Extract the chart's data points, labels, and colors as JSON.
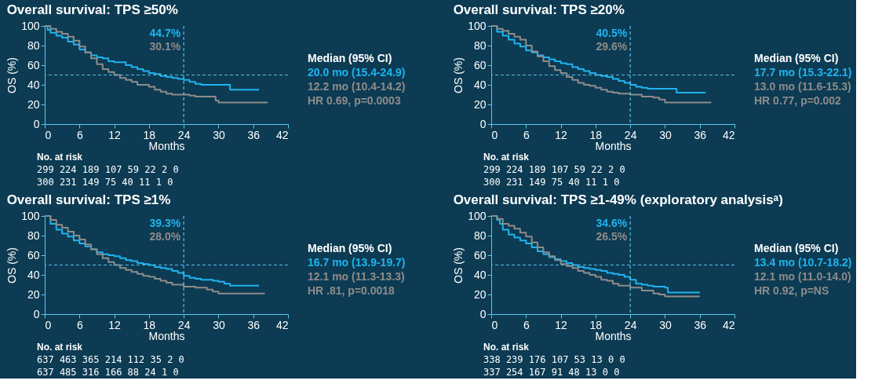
{
  "chart_data": [
    {
      "type": "step",
      "title": "Overall survival: TPS ≥50%",
      "xlabel": "Months",
      "ylabel": "OS (%)",
      "xlim": [
        0,
        42
      ],
      "xticks": [
        0,
        6,
        12,
        18,
        24,
        30,
        36,
        42
      ],
      "ylim": [
        0,
        100
      ],
      "yticks": [
        0,
        20,
        40,
        60,
        80,
        100
      ],
      "grid": false,
      "series": [
        {
          "color": "#1fb4ef",
          "x": [
            0,
            0.5,
            1,
            2,
            3,
            4,
            5,
            6,
            7,
            8,
            9,
            10,
            11,
            12,
            13,
            14,
            15,
            16,
            17,
            18,
            19,
            20,
            21,
            22,
            23,
            24,
            25,
            26,
            27,
            30,
            32,
            37
          ],
          "values": [
            100,
            96,
            93,
            90,
            88,
            84,
            81,
            76,
            73,
            70,
            68,
            67,
            64,
            63,
            63,
            60,
            58,
            56,
            54,
            52,
            51,
            49,
            48,
            47,
            46,
            45,
            43,
            41,
            40,
            40,
            35,
            35
          ]
        },
        {
          "color": "#8e8c8a",
          "x": [
            0,
            1,
            2,
            3,
            4,
            5,
            6,
            7,
            8,
            9,
            10,
            11,
            12,
            13,
            14,
            15,
            16,
            18,
            19,
            20,
            21,
            22,
            24,
            25,
            26,
            29.5,
            30,
            38.5
          ],
          "values": [
            100,
            97,
            94,
            92,
            89,
            85,
            79,
            73,
            67,
            61,
            56,
            53,
            50,
            47,
            45,
            43,
            40,
            38,
            35,
            33,
            31,
            30,
            30,
            29,
            28,
            24,
            22,
            22
          ]
        }
      ],
      "ref_lines": [
        {
          "axis": "y",
          "value": 50,
          "color": "#5bbfe6",
          "line_style": "dashed"
        },
        {
          "axis": "x",
          "value": 24,
          "color": "#5bbfe6",
          "line_style": "dashed"
        }
      ],
      "annotations": [
        "44.7%",
        "30.1%",
        "Median (95% CI)",
        "20.0 mo (15.4-24.9)",
        "12.2 mo (10.4-14.2)",
        "HR 0.69, p=0.0003",
        "No. at risk",
        "299   224   189   107    59    22    2    0",
        "300   231   149    75    40    11    1    0"
      ]
    },
    {
      "type": "step",
      "title": "Overall survival: TPS ≥20%",
      "xlabel": "Months",
      "ylabel": "OS (%)",
      "xlim": [
        0,
        42
      ],
      "xticks": [
        0,
        6,
        12,
        18,
        24,
        30,
        36,
        42
      ],
      "ylim": [
        0,
        100
      ],
      "yticks": [
        0,
        20,
        40,
        60,
        80,
        100
      ],
      "grid": false,
      "series": [
        {
          "color": "#1fb4ef",
          "x": [
            0,
            1,
            2,
            3,
            4,
            5,
            6,
            7,
            8,
            9,
            10,
            11,
            12,
            13,
            14,
            15,
            16,
            17,
            18,
            19,
            20,
            21,
            22,
            23,
            24,
            25,
            26,
            27,
            31.5,
            32,
            37
          ],
          "values": [
            100,
            94,
            90,
            86,
            82,
            79,
            75,
            73,
            70,
            68,
            66,
            64,
            62,
            61,
            58,
            56,
            54,
            52,
            50,
            49,
            48,
            46,
            44,
            42,
            40,
            38,
            37,
            36,
            36,
            32,
            32
          ]
        },
        {
          "color": "#8e8c8a",
          "x": [
            0,
            1,
            2,
            3,
            4,
            5,
            6,
            7,
            8,
            9,
            10,
            11,
            12,
            13,
            14,
            15,
            16,
            17,
            18,
            19,
            20,
            21,
            22,
            24,
            26,
            28,
            29,
            30,
            38
          ],
          "values": [
            100,
            97,
            95,
            92,
            89,
            86,
            80,
            74,
            69,
            64,
            59,
            55,
            52,
            48,
            45,
            42,
            40,
            39,
            37,
            35,
            33,
            32,
            31,
            30,
            28,
            27,
            25,
            22,
            22
          ]
        }
      ],
      "ref_lines": [
        {
          "axis": "y",
          "value": 50,
          "color": "#5bbfe6",
          "line_style": "dashed"
        },
        {
          "axis": "x",
          "value": 24,
          "color": "#5bbfe6",
          "line_style": "dashed"
        }
      ],
      "annotations": [
        "40.5%",
        "29.6%",
        "Median (95% CI)",
        "17.7 mo (15.3-22.1)",
        "13.0 mo (11.6-15.3)",
        "HR 0.77, p=0.002",
        "No. at risk",
        "299   224   189   107    59    22    2    0",
        "300   231   149    75    40    11    1    0"
      ]
    },
    {
      "type": "step",
      "title": "Overall survival: TPS ≥1%",
      "xlabel": "Months",
      "ylabel": "OS (%)",
      "xlim": [
        0,
        42
      ],
      "xticks": [
        0,
        6,
        12,
        18,
        24,
        30,
        36,
        42
      ],
      "ylim": [
        0,
        100
      ],
      "yticks": [
        0,
        20,
        40,
        60,
        80,
        100
      ],
      "grid": false,
      "series": [
        {
          "color": "#1fb4ef",
          "x": [
            0,
            1,
            2,
            3,
            4,
            5,
            6,
            7,
            8,
            9,
            10,
            11,
            12,
            13,
            14,
            15,
            16,
            17,
            18,
            19,
            20,
            21,
            22,
            23,
            24,
            25,
            26,
            27,
            29,
            30,
            31,
            32,
            37
          ],
          "values": [
            100,
            92,
            86,
            82,
            79,
            75,
            72,
            69,
            66,
            63,
            61,
            60,
            59,
            57,
            55,
            54,
            52,
            51,
            50,
            48,
            47,
            46,
            44,
            42,
            39,
            37,
            36,
            35,
            34,
            33,
            31,
            29,
            29
          ]
        },
        {
          "color": "#8e8c8a",
          "x": [
            0,
            1,
            2,
            3,
            4,
            5,
            6,
            7,
            8,
            9,
            10,
            11,
            12,
            13,
            14,
            15,
            16,
            17,
            18,
            19,
            20,
            21,
            22,
            24,
            26,
            28,
            29,
            30,
            38
          ],
          "values": [
            100,
            96,
            91,
            88,
            84,
            80,
            76,
            71,
            66,
            61,
            57,
            53,
            50,
            47,
            45,
            43,
            41,
            39,
            38,
            36,
            34,
            32,
            30,
            28.0,
            27,
            25,
            23,
            21,
            21
          ]
        }
      ],
      "ref_lines": [
        {
          "axis": "y",
          "value": 50,
          "color": "#5bbfe6",
          "line_style": "dashed"
        },
        {
          "axis": "x",
          "value": 24,
          "color": "#5bbfe6",
          "line_style": "dashed"
        }
      ],
      "annotations": [
        "39.3%",
        "28.0%",
        "Median (95% CI)",
        "16.7 mo (13.9-19.7)",
        "12.1 mo (11.3-13.3)",
        "HR .81, p=0.0018",
        "No. at risk",
        "637   463   365   214   112    35    2    0",
        "637   485   316   166    88    24    1    0"
      ]
    },
    {
      "type": "step",
      "title": "Overall survival: TPS ≥1-49% (exploratory analysisᵃ)",
      "xlabel": "Months",
      "ylabel": "OS (%)",
      "xlim": [
        0,
        42
      ],
      "xticks": [
        0,
        6,
        12,
        18,
        24,
        30,
        36,
        42
      ],
      "ylim": [
        0,
        100
      ],
      "yticks": [
        0,
        20,
        40,
        60,
        80,
        100
      ],
      "grid": false,
      "series": [
        {
          "color": "#1fb4ef",
          "x": [
            0,
            1,
            1.5,
            2,
            3,
            4,
            5,
            6,
            7,
            8,
            9,
            10,
            11,
            12,
            13,
            14,
            15,
            16,
            17,
            18,
            19,
            20,
            21,
            22,
            23,
            24,
            25,
            26,
            27,
            28,
            30,
            30.5,
            36
          ],
          "values": [
            100,
            96,
            92,
            86,
            81,
            78,
            75,
            72,
            68,
            64,
            61,
            58,
            56,
            54,
            52,
            50,
            48,
            47,
            46,
            45,
            44,
            42,
            41,
            40,
            38,
            35,
            31,
            30,
            29,
            28,
            27,
            22,
            22
          ]
        },
        {
          "color": "#8e8c8a",
          "x": [
            0,
            1,
            2,
            3,
            4,
            5,
            6,
            7,
            8,
            9,
            10,
            11,
            12,
            13,
            14,
            15,
            16,
            17,
            18,
            19,
            20,
            21,
            22,
            24,
            26,
            28,
            29,
            30,
            36
          ],
          "values": [
            100,
            97,
            92,
            90,
            87,
            83,
            79,
            73,
            68,
            63,
            59,
            55,
            51,
            49,
            47,
            44,
            42,
            40,
            38,
            35,
            34,
            31,
            29,
            27,
            24,
            21,
            20,
            18,
            18
          ]
        }
      ],
      "ref_lines": [
        {
          "axis": "y",
          "value": 50,
          "color": "#5bbfe6",
          "line_style": "dashed"
        },
        {
          "axis": "x",
          "value": 24,
          "color": "#5bbfe6",
          "line_style": "dashed"
        }
      ],
      "annotations": [
        "34.6%",
        "26.5%",
        "Median (95% CI)",
        "13.4 mo (10.7-18.2)",
        "12.1 mo (11.0-14.0)",
        "HR 0.92, p=NS",
        "No. at risk",
        "338   239   176   107    53    13    0    0",
        "337   254   167    91    48    13    0    0"
      ]
    }
  ]
}
